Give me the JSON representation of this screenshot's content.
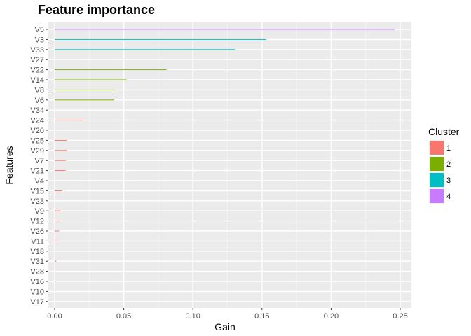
{
  "chart_data": {
    "type": "bar",
    "orientation": "horizontal",
    "title": "Feature importance",
    "xlabel": "Gain",
    "ylabel": "Features",
    "xlim": [
      0,
      0.25
    ],
    "x_ticks": [
      "0.00",
      "0.05",
      "0.10",
      "0.15",
      "0.20",
      "0.25"
    ],
    "grid": true,
    "legend": {
      "title": "Cluster",
      "position": "right",
      "entries": [
        {
          "label": "1",
          "color": "#F8766D"
        },
        {
          "label": "2",
          "color": "#7CAE00"
        },
        {
          "label": "3",
          "color": "#00BFC4"
        },
        {
          "label": "4",
          "color": "#C77CFF"
        }
      ]
    },
    "categories": [
      "V5",
      "V3",
      "V33",
      "V27",
      "V22",
      "V14",
      "V8",
      "V6",
      "V34",
      "V24",
      "V20",
      "V25",
      "V29",
      "V7",
      "V21",
      "V4",
      "V15",
      "V23",
      "V9",
      "V12",
      "V26",
      "V11",
      "V18",
      "V31",
      "V28",
      "V16",
      "V10",
      "V17"
    ],
    "values": [
      0.246,
      0.153,
      0.131,
      0.0,
      0.081,
      0.052,
      0.044,
      0.043,
      0.0,
      0.021,
      0.0,
      0.009,
      0.009,
      0.008,
      0.008,
      0.0,
      0.0055,
      0.0,
      0.0045,
      0.0037,
      0.0033,
      0.0028,
      0.0,
      0.0013,
      0.0,
      0.0007,
      0.0005,
      0.0
    ],
    "clusters": [
      "4",
      "3",
      "3",
      "1",
      "2",
      "2",
      "2",
      "2",
      "1",
      "1",
      "1",
      "1",
      "1",
      "1",
      "1",
      "1",
      "1",
      "1",
      "1",
      "1",
      "1",
      "1",
      "1",
      "1",
      "1",
      "1",
      "1",
      "1"
    ]
  }
}
